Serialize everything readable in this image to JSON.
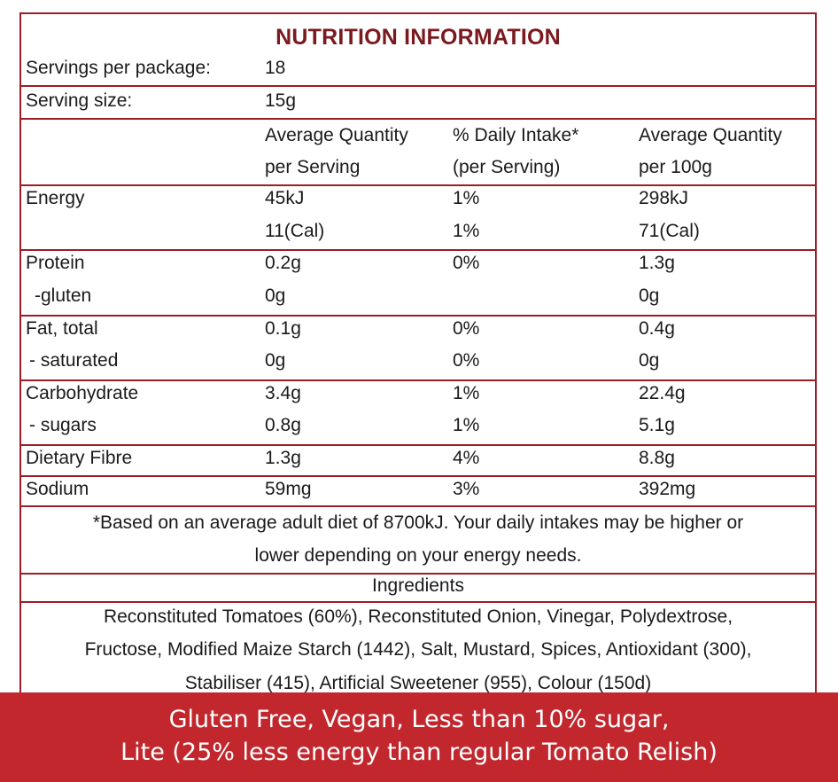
{
  "title": "NUTRITION INFORMATION",
  "servings": {
    "label": "Servings per package:",
    "value": "18"
  },
  "serving_size": {
    "label": "Serving size:",
    "value": "15g"
  },
  "header": {
    "col1_line1": "Average Quantity",
    "col1_line2": "per Serving",
    "col2_line1": "% Daily Intake*",
    "col2_line2": "(per Serving)",
    "col3_line1": "Average Quantity",
    "col3_line2": "per 100g"
  },
  "rows": [
    {
      "name": "Energy",
      "serving": "45kJ",
      "di": "1%",
      "per100": "298kJ"
    },
    {
      "name": "",
      "serving": "11(Cal)",
      "di": "1%",
      "per100": "71(Cal)"
    },
    {
      "name": "Protein",
      "serving": "0.2g",
      "di": "0%",
      "per100": "1.3g"
    },
    {
      "name": "-gluten",
      "serving": "0g",
      "di": "",
      "per100": "0g"
    },
    {
      "name": "Fat, total",
      "serving": "0.1g",
      "di": "0%",
      "per100": "0.4g"
    },
    {
      "name": "- saturated",
      "serving": "0g",
      "di": "0%",
      "per100": "0g"
    },
    {
      "name": "Carbohydrate",
      "serving": "3.4g",
      "di": "1%",
      "per100": "22.4g"
    },
    {
      "name": "- sugars",
      "serving": "0.8g",
      "di": "1%",
      "per100": "5.1g"
    },
    {
      "name": "Dietary Fibre",
      "serving": "1.3g",
      "di": "4%",
      "per100": "8.8g"
    },
    {
      "name": "Sodium",
      "serving": "59mg",
      "di": "3%",
      "per100": "392mg"
    }
  ],
  "footnote": {
    "line1": "*Based on an average adult diet of 8700kJ. Your daily intakes may be higher or",
    "line2": "lower depending on your energy needs."
  },
  "ingredients": {
    "heading": "Ingredients",
    "line1": "Reconstituted Tomatoes (60%), Reconstituted Onion, Vinegar, Polydextrose,",
    "line2": "Fructose, Modified Maize Starch (1442), Salt, Mustard, Spices, Antioxidant (300),",
    "line3": "Stabiliser (415), Artificial Sweetener (955), Colour (150d)"
  },
  "banner": {
    "line1": "Gluten Free, Vegan, Less than 10% sugar,",
    "line2": "Lite (25% less energy than regular Tomato Relish)"
  },
  "colors": {
    "border": "#9b1e25",
    "title": "#7a1a1f",
    "banner_bg": "#c1272d"
  }
}
